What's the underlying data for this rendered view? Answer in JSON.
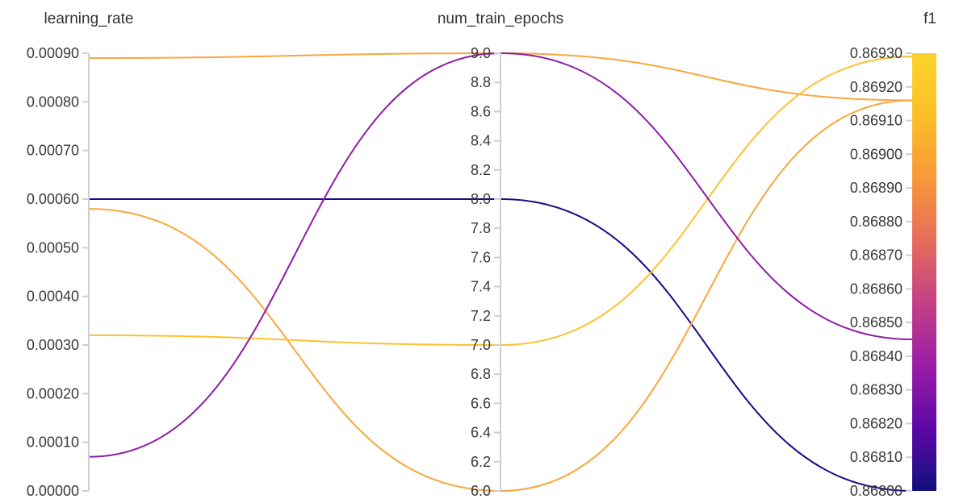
{
  "chart_data": {
    "type": "parallel_coordinates",
    "axes": [
      {
        "name": "learning_rate",
        "min": 0.0,
        "max": 0.0009,
        "ticks": [
          "0.00000",
          "0.00010",
          "0.00020",
          "0.00030",
          "0.00040",
          "0.00050",
          "0.00060",
          "0.00070",
          "0.00080",
          "0.00090"
        ]
      },
      {
        "name": "num_train_epochs",
        "min": 6.0,
        "max": 9.0,
        "ticks": [
          "6.0",
          "6.2",
          "6.4",
          "6.6",
          "6.8",
          "7.0",
          "7.2",
          "7.4",
          "7.6",
          "7.8",
          "8.0",
          "8.2",
          "8.4",
          "8.6",
          "8.8",
          "9.0"
        ]
      },
      {
        "name": "f1",
        "min": 0.868,
        "max": 0.8693,
        "ticks": [
          "0.86800",
          "0.86810",
          "0.86820",
          "0.86830",
          "0.86840",
          "0.86850",
          "0.86860",
          "0.86870",
          "0.86880",
          "0.86890",
          "0.86900",
          "0.86910",
          "0.86920",
          "0.86930"
        ]
      }
    ],
    "color_scale": {
      "axis": "f1",
      "stops": [
        "#0d0887",
        "#6a00a8",
        "#b12a90",
        "#e16462",
        "#fca636",
        "#f0f921"
      ],
      "bar_stops": [
        "#13107c",
        "#5c07a6",
        "#9a1ea8",
        "#c43f86",
        "#e66c5c",
        "#f8983a",
        "#fbbf28",
        "#fcd42c"
      ]
    },
    "runs": [
      {
        "learning_rate": 0.00089,
        "num_train_epochs": 9.0,
        "f1": 0.86916,
        "color": "#f9a73e"
      },
      {
        "learning_rate": 0.0006,
        "num_train_epochs": 8.0,
        "f1": 0.868,
        "color": "#1a0c84"
      },
      {
        "learning_rate": 0.00058,
        "num_train_epochs": 6.0,
        "f1": 0.86916,
        "color": "#f9a73e"
      },
      {
        "learning_rate": 0.00032,
        "num_train_epochs": 7.0,
        "f1": 0.86929,
        "color": "#fcc22e"
      },
      {
        "learning_rate": 7e-05,
        "num_train_epochs": 9.0,
        "f1": 0.86845,
        "color": "#8e1da6"
      }
    ]
  }
}
